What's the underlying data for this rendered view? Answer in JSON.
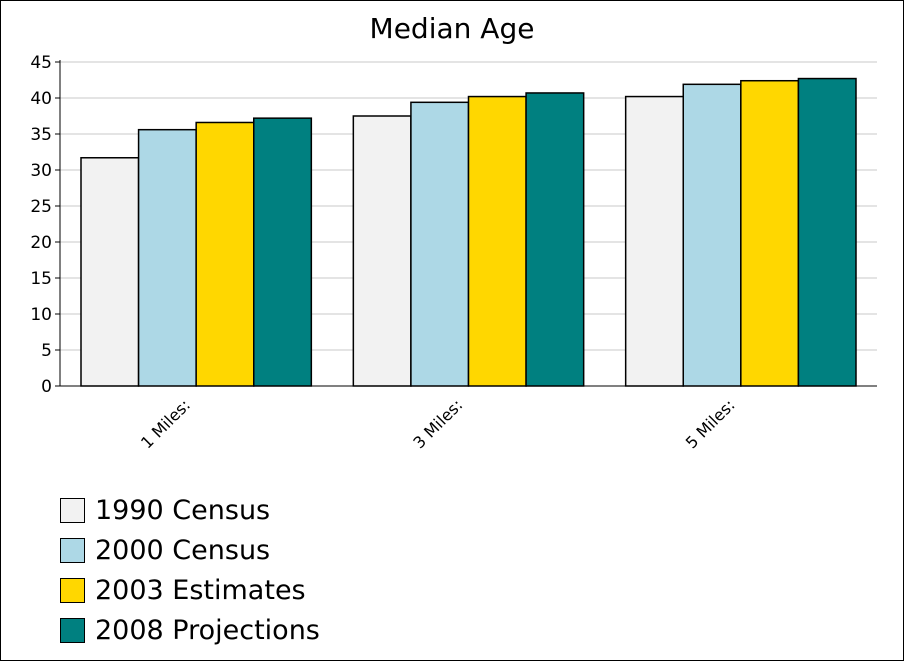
{
  "chart_data": {
    "type": "bar",
    "title": "Median Age",
    "xlabel": "",
    "ylabel": "",
    "categories": [
      "1 Miles:",
      "3 Miles:",
      "5 Miles:"
    ],
    "ylim": [
      0,
      45
    ],
    "yticks": [
      0,
      5,
      10,
      15,
      20,
      25,
      30,
      35,
      40,
      45
    ],
    "grid": true,
    "legend_position": "bottom-left",
    "series": [
      {
        "name": "1990 Census",
        "color": "#f2f2f2",
        "values": [
          31.7,
          37.5,
          40.2
        ]
      },
      {
        "name": "2000 Census",
        "color": "#add8e6",
        "values": [
          35.6,
          39.4,
          41.9
        ]
      },
      {
        "name": "2003 Estimates",
        "color": "#ffd700",
        "values": [
          36.6,
          40.2,
          42.4
        ]
      },
      {
        "name": "2008 Projections",
        "color": "#008080",
        "values": [
          37.2,
          40.7,
          42.7
        ]
      }
    ]
  }
}
